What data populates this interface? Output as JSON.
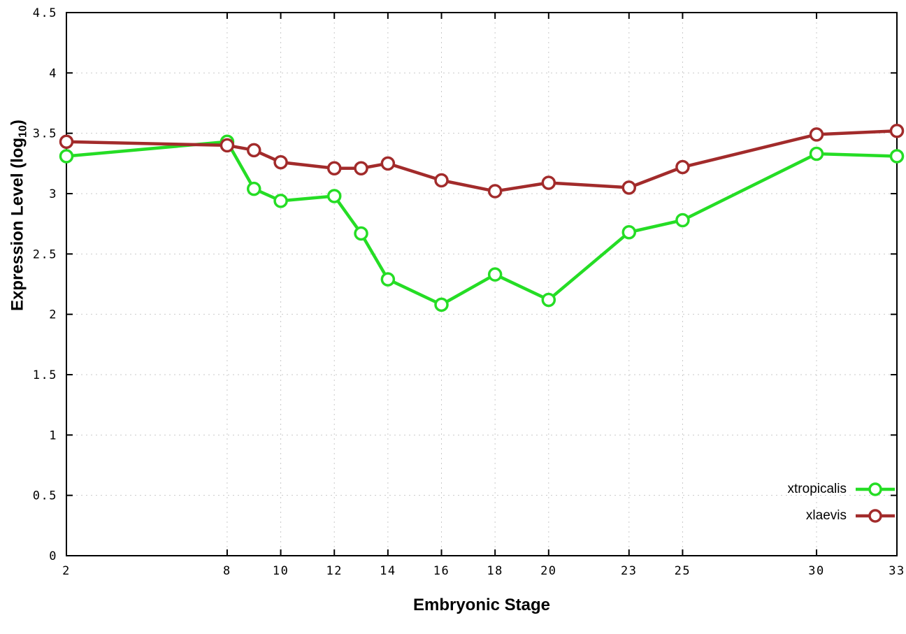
{
  "chart": {
    "xlabel": "Embryonic Stage",
    "ylabel_main": "Expression Level (log",
    "ylabel_sub": "10",
    "ylabel_close": ")"
  },
  "chart_data": {
    "type": "line",
    "title": "",
    "xlabel": "Embryonic Stage",
    "ylabel": "Expression Level (log10)",
    "x": [
      2,
      8,
      9,
      10,
      12,
      13,
      14,
      16,
      18,
      20,
      23,
      25,
      30,
      33
    ],
    "series": [
      {
        "name": "xtropicalis",
        "color": "#25dd25",
        "marker": "open-circle",
        "values": [
          3.31,
          3.43,
          3.04,
          2.94,
          2.98,
          2.67,
          2.29,
          2.08,
          2.33,
          2.12,
          2.68,
          2.78,
          3.33,
          3.31
        ]
      },
      {
        "name": "xlaevis",
        "color": "#a22b2b",
        "marker": "open-circle",
        "values": [
          3.43,
          3.4,
          3.36,
          3.26,
          3.21,
          3.21,
          3.25,
          3.11,
          3.02,
          3.09,
          3.05,
          3.22,
          3.49,
          3.52
        ]
      }
    ],
    "xlim": [
      2,
      33
    ],
    "ylim": [
      0,
      4.5
    ],
    "xticks": [
      2,
      8,
      10,
      12,
      14,
      16,
      18,
      20,
      23,
      25,
      30,
      33
    ],
    "xtick_labels": [
      "2",
      "8",
      "10",
      "12",
      "14",
      "16",
      "18",
      "20",
      "23",
      "25",
      "30",
      "33"
    ],
    "yticks": [
      0,
      0.5,
      1,
      1.5,
      2,
      2.5,
      3,
      3.5,
      4,
      4.5
    ],
    "ytick_labels": [
      "0",
      "0.5",
      "1",
      "1.5",
      "2",
      "2.5",
      "3",
      "3.5",
      "4",
      "4.5"
    ],
    "grid": true,
    "grid_color": "#c9c9c9",
    "border_color": "#000000",
    "legend_position": "bottom-right"
  }
}
